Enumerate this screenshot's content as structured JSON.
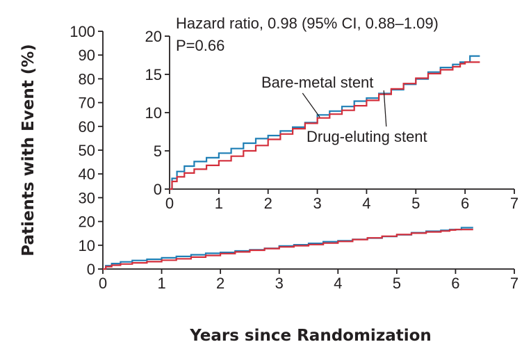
{
  "chart_data": [
    {
      "type": "line",
      "panel": "main",
      "xlabel": "Years since Randomization",
      "ylabel": "Patients with Event (%)",
      "xlim": [
        0,
        7
      ],
      "ylim": [
        0,
        100
      ],
      "xticks": [
        "0",
        "1",
        "2",
        "3",
        "4",
        "5",
        "6",
        "7"
      ],
      "yticks": [
        "0",
        "10",
        "20",
        "30",
        "40",
        "50",
        "60",
        "70",
        "80",
        "90",
        "100"
      ],
      "grid": false,
      "series": [
        {
          "key": "bare_metal",
          "color": "#1f7fb5",
          "x": [
            0,
            0.05,
            0.15,
            0.3,
            0.5,
            0.75,
            1.0,
            1.25,
            1.5,
            1.75,
            2.0,
            2.25,
            2.5,
            2.75,
            3.0,
            3.25,
            3.5,
            3.75,
            4.0,
            4.25,
            4.5,
            4.75,
            5.0,
            5.25,
            5.5,
            5.75,
            5.9,
            6.0,
            6.1,
            6.3
          ],
          "y": [
            0,
            1.4,
            2.3,
            3.0,
            3.6,
            4.1,
            4.7,
            5.3,
            6.0,
            6.6,
            7.0,
            7.6,
            8.1,
            8.7,
            9.7,
            10.2,
            10.8,
            11.5,
            11.9,
            12.5,
            13.0,
            13.7,
            14.4,
            15.3,
            15.9,
            16.3,
            16.6,
            16.6,
            17.4,
            17.4
          ]
        },
        {
          "key": "drug_eluting",
          "color": "#d32f3b",
          "x": [
            0,
            0.05,
            0.15,
            0.3,
            0.5,
            0.75,
            1.0,
            1.25,
            1.5,
            1.75,
            2.0,
            2.25,
            2.5,
            2.75,
            3.0,
            3.25,
            3.5,
            3.75,
            4.0,
            4.25,
            4.5,
            4.75,
            5.0,
            5.25,
            5.5,
            5.75,
            5.9,
            6.0,
            6.1,
            6.3
          ],
          "y": [
            0,
            1.0,
            1.6,
            2.1,
            2.6,
            3.1,
            3.7,
            4.3,
            5.0,
            5.7,
            6.5,
            7.2,
            7.9,
            8.6,
            9.3,
            9.8,
            10.3,
            10.9,
            11.6,
            12.4,
            13.1,
            13.8,
            14.5,
            15.1,
            15.6,
            16.0,
            16.4,
            16.6,
            16.6,
            16.6
          ]
        }
      ]
    },
    {
      "type": "line",
      "panel": "inset",
      "xlim": [
        0,
        7
      ],
      "ylim": [
        0,
        20
      ],
      "xticks": [
        "0",
        "1",
        "2",
        "3",
        "4",
        "5",
        "6",
        "7"
      ],
      "yticks": [
        "0",
        "5",
        "10",
        "15",
        "20"
      ],
      "grid": false,
      "annotation_lines": [
        "Hazard ratio, 0.98 (95% CI, 0.88–1.09)",
        "P=0.66"
      ],
      "series": [
        {
          "name": "Bare-metal stent",
          "key": "bare_metal",
          "color": "#1f7fb5",
          "x": [
            0,
            0.05,
            0.15,
            0.3,
            0.5,
            0.75,
            1.0,
            1.25,
            1.5,
            1.75,
            2.0,
            2.25,
            2.5,
            2.75,
            3.0,
            3.25,
            3.5,
            3.75,
            4.0,
            4.25,
            4.5,
            4.75,
            5.0,
            5.25,
            5.5,
            5.75,
            5.9,
            6.0,
            6.1,
            6.3
          ],
          "y": [
            0,
            1.4,
            2.3,
            3.0,
            3.6,
            4.1,
            4.7,
            5.3,
            6.0,
            6.6,
            7.0,
            7.6,
            8.1,
            8.7,
            9.7,
            10.2,
            10.8,
            11.5,
            11.9,
            12.5,
            13.0,
            13.7,
            14.4,
            15.3,
            15.9,
            16.3,
            16.6,
            16.6,
            17.4,
            17.4
          ]
        },
        {
          "name": "Drug-eluting stent",
          "key": "drug_eluting",
          "color": "#d32f3b",
          "x": [
            0,
            0.05,
            0.15,
            0.3,
            0.5,
            0.75,
            1.0,
            1.25,
            1.5,
            1.75,
            2.0,
            2.25,
            2.5,
            2.75,
            3.0,
            3.25,
            3.5,
            3.75,
            4.0,
            4.25,
            4.5,
            4.75,
            5.0,
            5.25,
            5.5,
            5.75,
            5.9,
            6.0,
            6.1,
            6.3
          ],
          "y": [
            0,
            1.0,
            1.6,
            2.1,
            2.6,
            3.1,
            3.7,
            4.3,
            5.0,
            5.7,
            6.5,
            7.2,
            7.9,
            8.6,
            9.3,
            9.8,
            10.3,
            10.9,
            11.6,
            12.4,
            13.1,
            13.8,
            14.5,
            15.1,
            15.6,
            16.0,
            16.4,
            16.6,
            16.6,
            16.6
          ]
        }
      ]
    }
  ]
}
